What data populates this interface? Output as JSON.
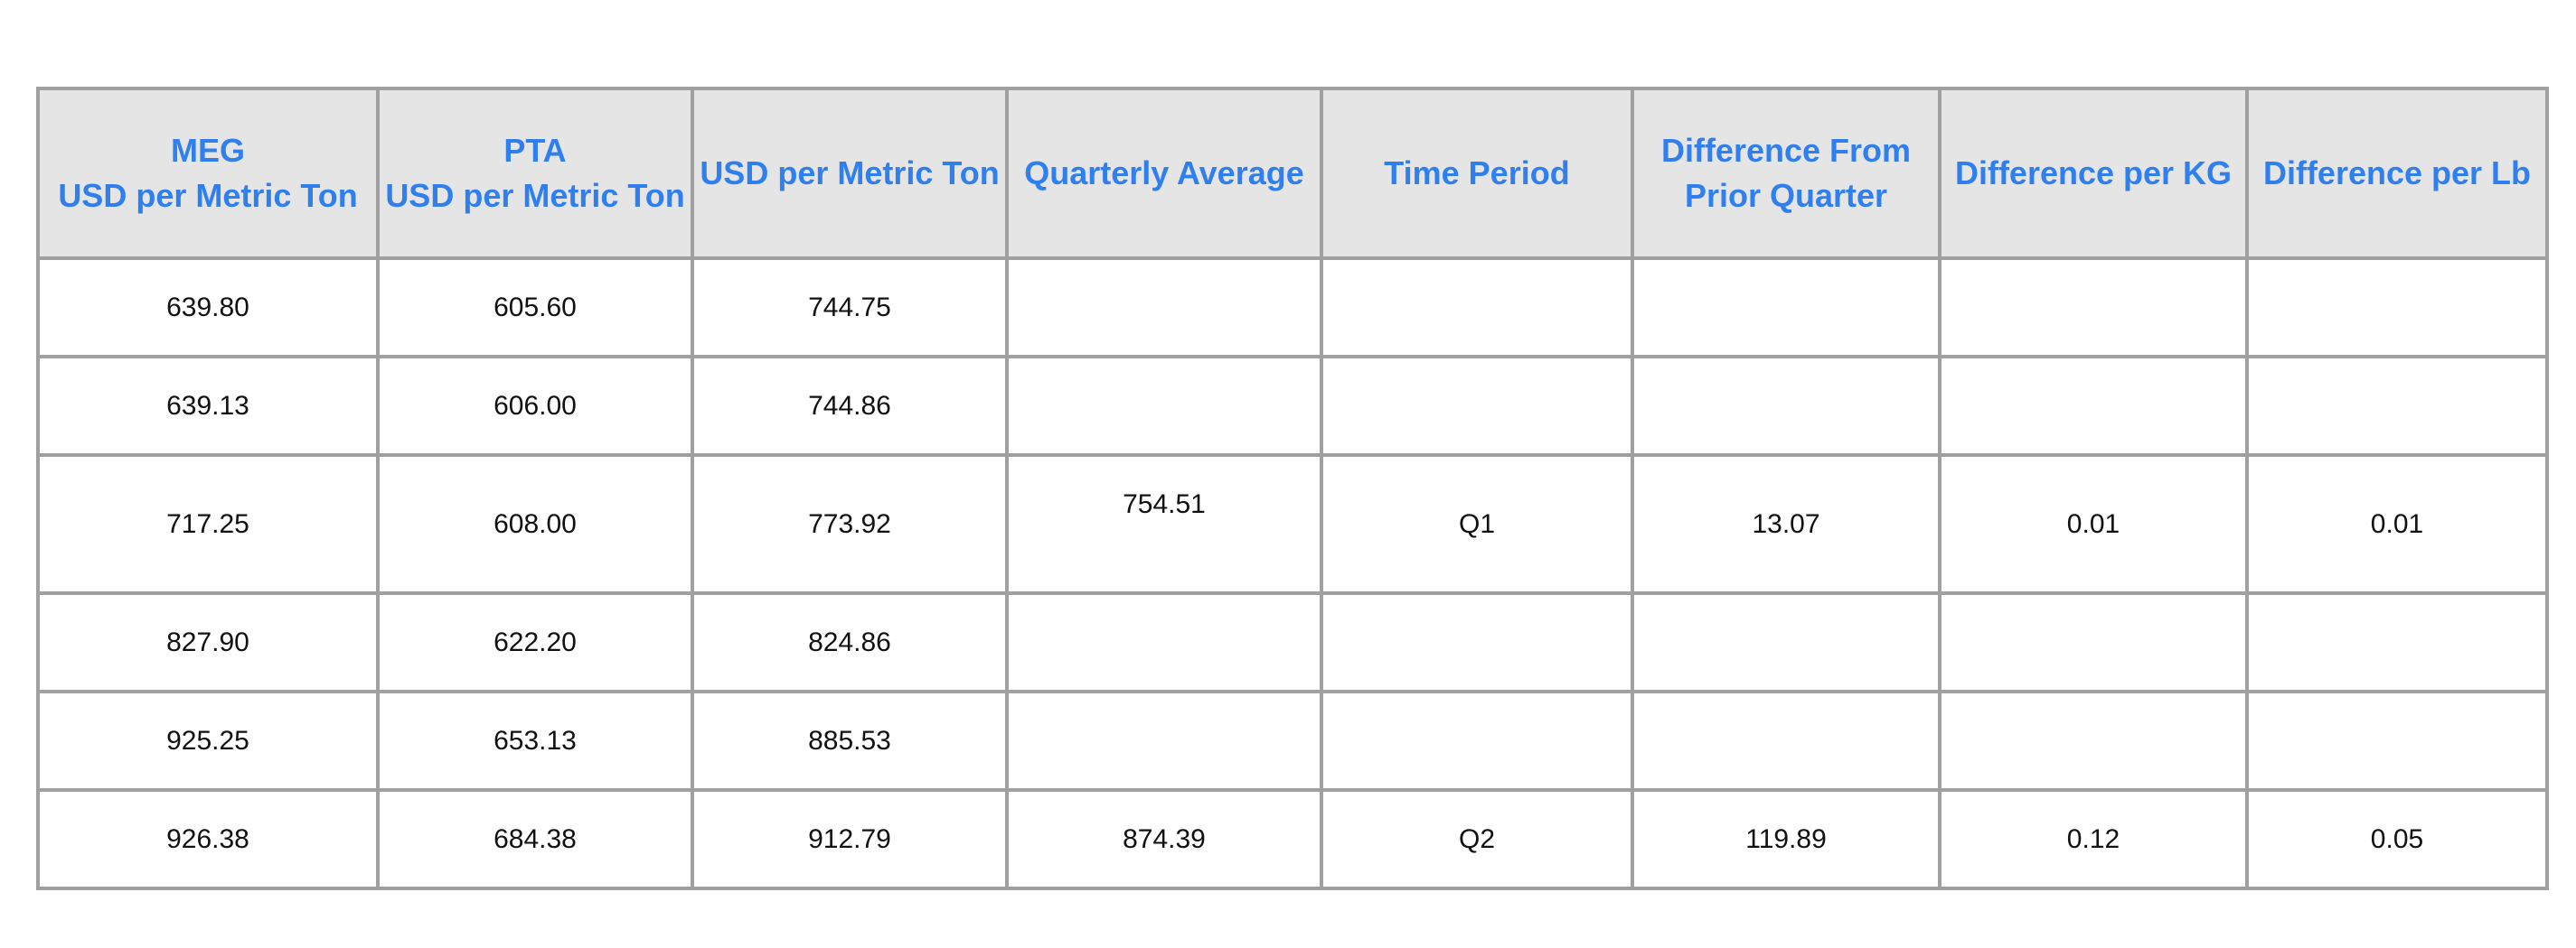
{
  "table": {
    "headers": [
      [
        "MEG",
        "USD per Metric Ton"
      ],
      [
        "PTA",
        "USD per Metric Ton"
      ],
      [
        "USD per Metric Ton"
      ],
      [
        "Quarterly Average"
      ],
      [
        "Time Period"
      ],
      [
        "Difference From",
        "Prior Quarter"
      ],
      [
        "Difference per KG"
      ],
      [
        "Difference per Lb"
      ]
    ],
    "rows": [
      [
        "639.80",
        "605.60",
        "744.75",
        "",
        "",
        "",
        "",
        ""
      ],
      [
        "639.13",
        "606.00",
        "744.86",
        "",
        "",
        "",
        "",
        ""
      ],
      [
        "717.25",
        "608.00",
        "773.92",
        "754.51",
        "Q1",
        "13.07",
        "0.01",
        "0.01"
      ],
      [
        "827.90",
        "622.20",
        "824.86",
        "",
        "",
        "",
        "",
        ""
      ],
      [
        "925.25",
        "653.13",
        "885.53",
        "",
        "",
        "",
        "",
        ""
      ],
      [
        "926.38",
        "684.38",
        "912.79",
        "874.39",
        "Q2",
        "119.89",
        "0.12",
        "0.05"
      ]
    ]
  }
}
